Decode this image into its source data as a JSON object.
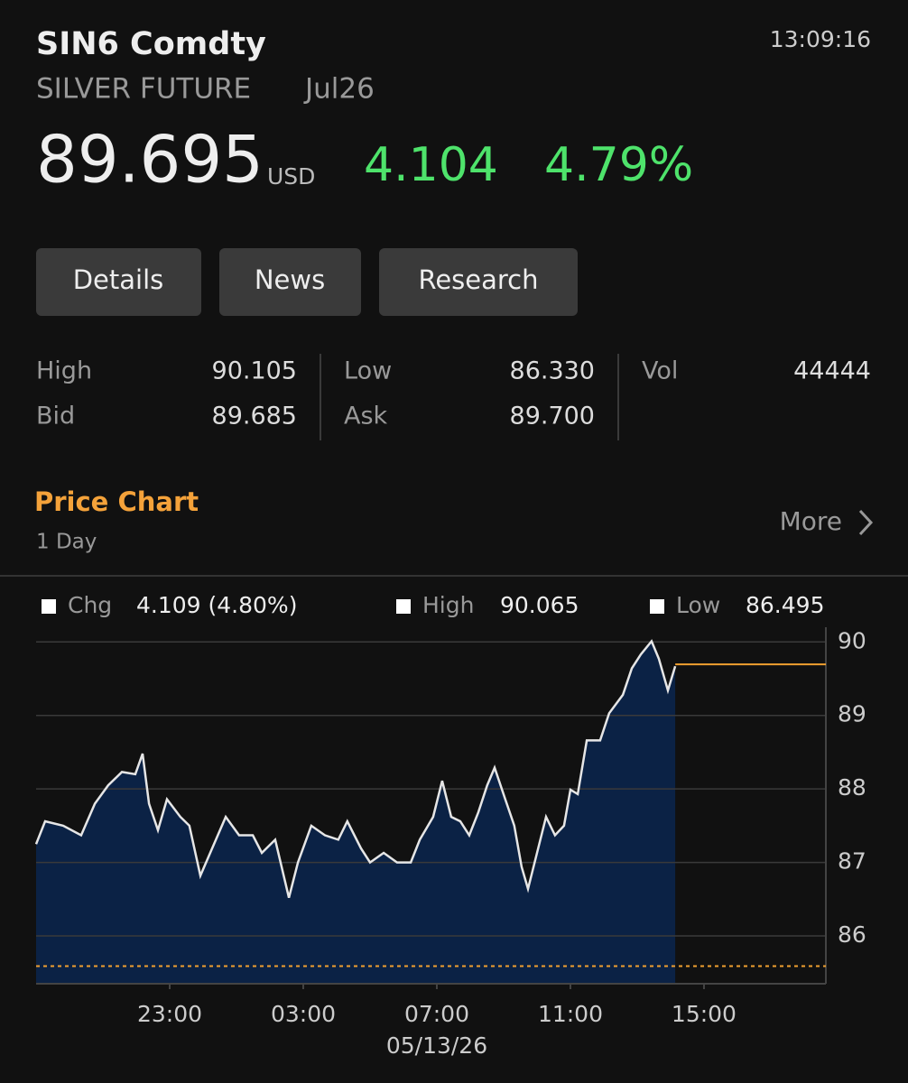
{
  "header": {
    "ticker": "SIN6 Comdty",
    "time": "13:09:16",
    "name": "SILVER FUTURE",
    "contract": "Jul26",
    "price": "89.695",
    "currency": "USD",
    "change": "4.104",
    "change_pct": "4.79%"
  },
  "tabs": [
    "Details",
    "News",
    "Research"
  ],
  "stats": [
    [
      {
        "label": "High",
        "value": "90.105"
      },
      {
        "label": "Low",
        "value": "86.330"
      },
      {
        "label": "Vol",
        "value": "44444"
      }
    ],
    [
      {
        "label": "Bid",
        "value": "89.685"
      },
      {
        "label": "Ask",
        "value": "89.700"
      }
    ]
  ],
  "section": {
    "title": "Price Chart",
    "period": "1 Day",
    "more": "More"
  },
  "chart_data": {
    "type": "area",
    "legend": [
      {
        "label": "Chg",
        "value": "4.109 (4.80%)"
      },
      {
        "label": "High",
        "value": "90.065"
      },
      {
        "label": "Low",
        "value": "86.495"
      }
    ],
    "x": [
      0,
      0.27,
      0.81,
      1.35,
      1.76,
      2.16,
      2.57,
      2.97,
      3.19,
      3.38,
      3.65,
      3.92,
      4.32,
      4.59,
      4.92,
      5.27,
      5.68,
      6.08,
      6.49,
      6.76,
      7.16,
      7.57,
      7.84,
      8.24,
      8.65,
      9.05,
      9.32,
      9.73,
      10,
      10.41,
      10.81,
      11.22,
      11.49,
      11.89,
      12.16,
      12.43,
      12.7,
      12.97,
      13.24,
      13.51,
      13.73,
      14.05,
      14.32,
      14.54,
      14.73,
      15,
      15.27,
      15.54,
      15.81,
      16,
      16.22,
      16.49,
      16.89,
      17.16,
      17.57,
      17.84,
      18.11,
      18.43,
      18.65,
      18.92,
      19.14
    ],
    "series": [
      {
        "color": "#e6e6e6",
        "fill": "#0b2245",
        "values": [
          87.25,
          87.56,
          87.5,
          87.37,
          87.8,
          88.05,
          88.23,
          88.2,
          88.48,
          87.8,
          87.44,
          87.86,
          87.62,
          87.5,
          86.82,
          87.19,
          87.62,
          87.37,
          87.37,
          87.13,
          87.31,
          86.52,
          87.0,
          87.5,
          87.37,
          87.31,
          87.56,
          87.19,
          87.0,
          87.13,
          87.0,
          87.0,
          87.31,
          87.62,
          88.11,
          87.62,
          87.56,
          87.37,
          87.68,
          88.05,
          88.29,
          87.86,
          87.5,
          86.94,
          86.64,
          87.13,
          87.62,
          87.37,
          87.5,
          87.99,
          87.93,
          88.66,
          88.66,
          89.03,
          89.28,
          89.64,
          89.83,
          90.01,
          89.77,
          89.34,
          89.67
        ]
      }
    ],
    "last_price_line": {
      "value": 89.695,
      "color": "#f0a030"
    },
    "prev_close_line": {
      "value": 85.59,
      "color": "#f0a030"
    },
    "xlim": [
      0,
      23.65
    ],
    "xticks": [
      {
        "value": 4,
        "label": "23:00"
      },
      {
        "value": 8,
        "label": "03:00"
      },
      {
        "value": 12,
        "label": "07:00"
      },
      {
        "value": 16,
        "label": "11:00"
      },
      {
        "value": 20,
        "label": "15:00"
      }
    ],
    "x_date_label": "05/13/26",
    "ylim": [
      85.35,
      90.2
    ],
    "yticks": [
      86,
      87,
      88,
      89,
      90
    ],
    "grid": true
  }
}
